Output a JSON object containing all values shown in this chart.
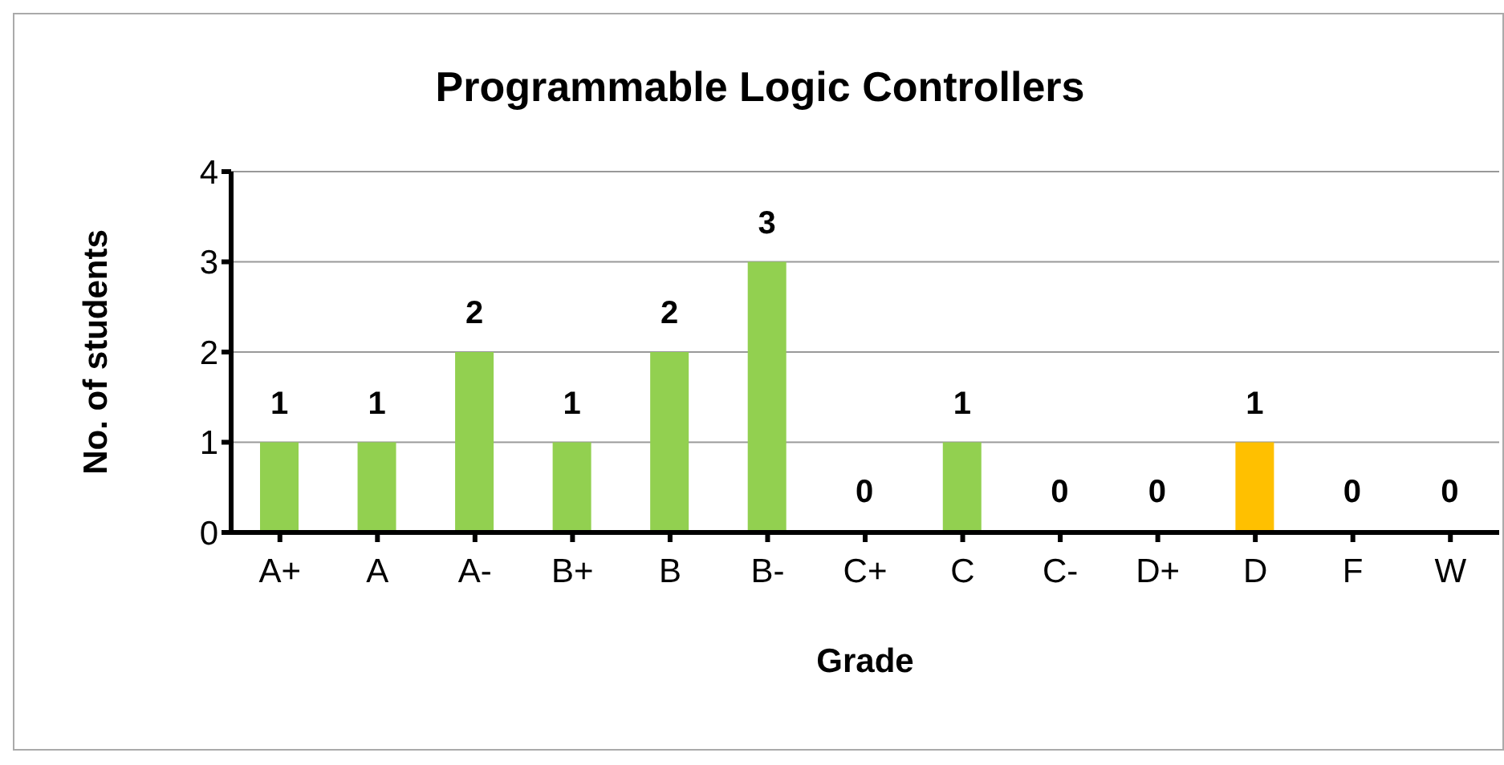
{
  "chart_data": {
    "type": "bar",
    "title": "Programmable Logic Controllers",
    "xlabel": "Grade",
    "ylabel": "No. of students",
    "categories": [
      "A+",
      "A",
      "A-",
      "B+",
      "B",
      "B-",
      "C+",
      "C",
      "C-",
      "D+",
      "D",
      "F",
      "W"
    ],
    "values": [
      1,
      1,
      2,
      1,
      2,
      3,
      0,
      1,
      0,
      0,
      1,
      0,
      0
    ],
    "colors": [
      "#92d050",
      "#92d050",
      "#92d050",
      "#92d050",
      "#92d050",
      "#92d050",
      "#92d050",
      "#92d050",
      "#92d050",
      "#92d050",
      "#ffc000",
      "#92d050",
      "#92d050"
    ],
    "ylim": [
      0,
      4
    ],
    "yticks": [
      0,
      1,
      2,
      3,
      4
    ],
    "grid": "y",
    "data_labels": true
  }
}
